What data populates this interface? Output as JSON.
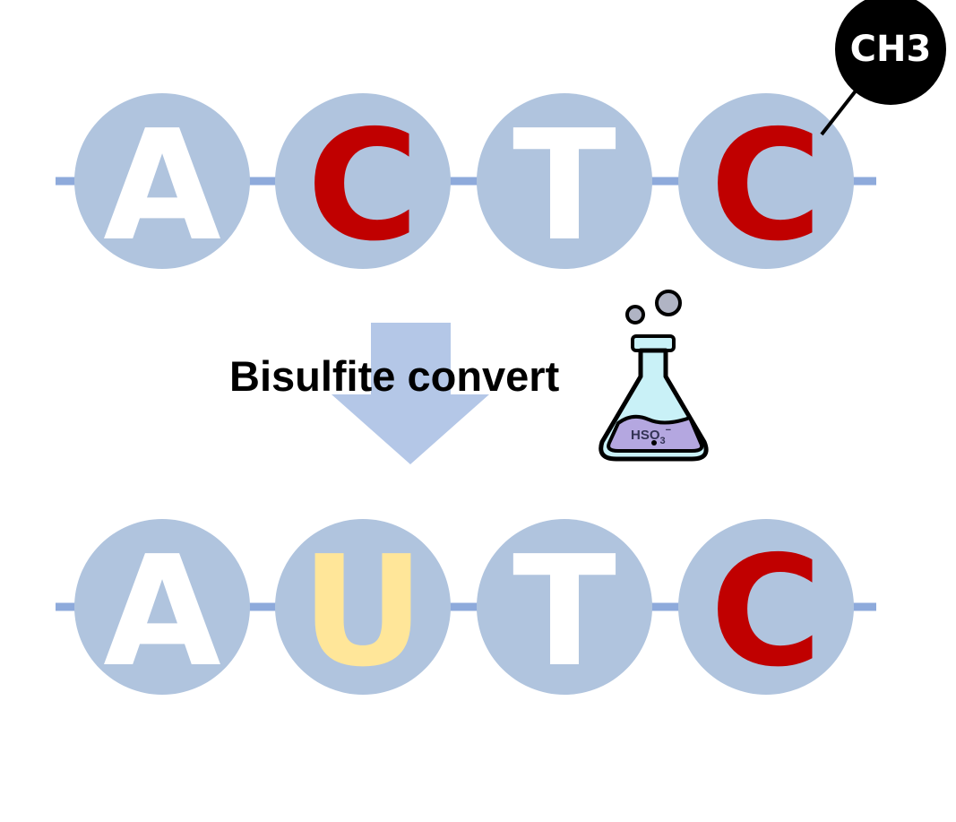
{
  "diagram": {
    "original_strand": [
      {
        "base": "A",
        "color": "#ffffff"
      },
      {
        "base": "C",
        "color": "#c00000"
      },
      {
        "base": "T",
        "color": "#ffffff"
      },
      {
        "base": "C",
        "color": "#c00000"
      }
    ],
    "converted_strand": [
      {
        "base": "A",
        "color": "#ffffff"
      },
      {
        "base": "U",
        "color": "#ffe699"
      },
      {
        "base": "T",
        "color": "#ffffff"
      },
      {
        "base": "C",
        "color": "#c00000"
      }
    ],
    "methyl_label": "CH3",
    "process_label": "Bisulfite convert",
    "reagent_label": "HSO",
    "reagent_subscript": "3",
    "reagent_charge": "−",
    "colors": {
      "nucleotide_fill": "#b0c4de",
      "backbone": "#8eaadb",
      "arrow": "#b4c7e7",
      "methyl_fill": "#000000",
      "flask_liquid": "#c9f1f7",
      "flask_solution": "#b4a7e0"
    }
  }
}
